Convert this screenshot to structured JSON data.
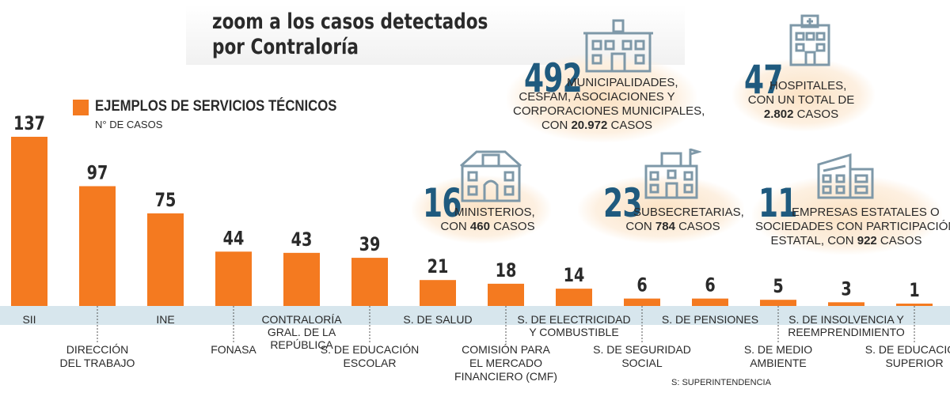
{
  "title": "zoom a los casos detectados\npor Contraloría",
  "legend": {
    "label": "EJEMPLOS DE SERVICIOS TÉCNICOS",
    "sub": "N° DE CASOS",
    "color": "#f47a20"
  },
  "chart_data": {
    "type": "bar",
    "categories": [
      "SII",
      "DIRECCIÓN DEL TRABAJO",
      "INE",
      "FONASA",
      "CONTRALORÍA GRAL. DE LA REPÚBLICA",
      "S. DE EDUCACIÓN ESCOLAR",
      "S. DE SALUD",
      "COMISIÓN PARA EL MERCADO FINANCIERO (CMF)",
      "S. DE ELECTRICIDAD Y COMBUSTIBLE",
      "S. DE SEGURIDAD SOCIAL",
      "S. DE PENSIONES",
      "S. DE MEDIO AMBIENTE",
      "S. DE INSOLVENCIA Y REEMPRENDIMIENTO",
      "S. DE EDUCACIÓN SUPERIOR"
    ],
    "label_lines": [
      [
        "SII"
      ],
      [
        "DIRECCIÓN",
        "DEL TRABAJO"
      ],
      [
        "INE"
      ],
      [
        "FONASA"
      ],
      [
        "CONTRALORÍA",
        "GRAL. DE LA",
        "REPÚBLICA"
      ],
      [
        "S. DE EDUCACIÓN",
        "ESCOLAR"
      ],
      [
        "S. DE SALUD"
      ],
      [
        "COMISIÓN PARA",
        "EL MERCADO",
        "FINANCIERO (CMF)"
      ],
      [
        "S. DE ELECTRICIDAD",
        "Y COMBUSTIBLE"
      ],
      [
        "S. DE SEGURIDAD",
        "SOCIAL"
      ],
      [
        "S. DE PENSIONES"
      ],
      [
        "S. DE MEDIO",
        "AMBIENTE"
      ],
      [
        "S. DE INSOLVENCIA Y",
        "REEMPRENDIMIENTO"
      ],
      [
        "S. DE EDUCACIÓN",
        "SUPERIOR"
      ]
    ],
    "label_placement": [
      "above",
      "below",
      "above",
      "below",
      "above",
      "below",
      "above",
      "below",
      "above",
      "below",
      "above",
      "below",
      "above",
      "below"
    ],
    "values": [
      137,
      97,
      75,
      44,
      43,
      39,
      21,
      18,
      14,
      6,
      6,
      5,
      3,
      1
    ],
    "series": [
      {
        "name": "EJEMPLOS DE SERVICIOS TÉCNICOS",
        "values": [
          137,
          97,
          75,
          44,
          43,
          39,
          21,
          18,
          14,
          6,
          6,
          5,
          3,
          1
        ]
      }
    ],
    "ylabel": "N° DE CASOS",
    "ylim": [
      0,
      137
    ],
    "grid": false,
    "bar_color": "#f47a20",
    "baseline_color": "#d7e6ed"
  },
  "callouts": [
    {
      "number": "492",
      "lines": [
        [
          "MUNICIPALIDADES,",
          ""
        ],
        [
          "CESFAM, ASOCIACIONES Y",
          ""
        ],
        [
          "CORPORACIONES MUNICIPALES,",
          ""
        ],
        [
          "CON ",
          "20.972"
        ],
        [
          " CASOS",
          ""
        ]
      ],
      "icon": "city-hall-icon"
    },
    {
      "number": "47",
      "icon": "hospital-icon"
    },
    {
      "number": "16",
      "icon": "ministry-building-icon"
    },
    {
      "number": "23",
      "icon": "school-building-icon"
    },
    {
      "number": "11",
      "icon": "company-building-icon"
    }
  ],
  "callout_text": {
    "municipal": {
      "l1": "MUNICIPALIDADES,",
      "l2": "CESFAM, ASOCIACIONES Y",
      "l3": "CORPORACIONES MUNICIPALES,",
      "l4a": "CON ",
      "l4b": "20.972",
      "l4c": " CASOS"
    },
    "hospital": {
      "l1": "HOSPITALES,",
      "l2": "CON UN TOTAL DE",
      "l3b": "2.802",
      "l3c": " CASOS"
    },
    "ministry": {
      "l1": "MINISTERIOS,",
      "l2a": "CON ",
      "l2b": "460",
      "l2c": " CASOS"
    },
    "subsec": {
      "l1": "SUBSECRETARIAS,",
      "l2a": "CON ",
      "l2b": "784",
      "l2c": " CASOS"
    },
    "company": {
      "l1": "EMPRESAS ESTATALES O",
      "l2": "SOCIEDADES CON PARTICIPACIÓN",
      "l3a": "ESTATAL, CON ",
      "l3b": "922",
      "l3c": " CASOS"
    }
  },
  "footnote": "S: SUPERINTENDENCIA",
  "colors": {
    "accent_number": "#1f5a7e",
    "icon": "#7e98a8",
    "bubble": "#fbe2c4"
  }
}
